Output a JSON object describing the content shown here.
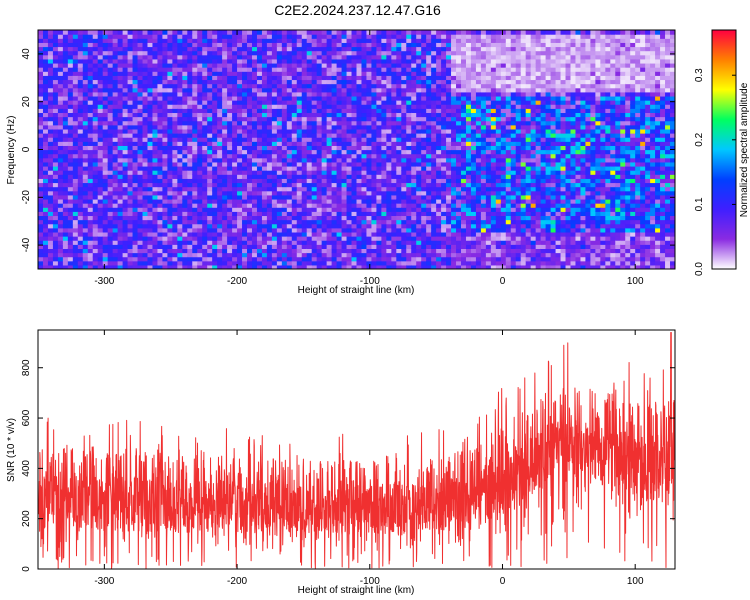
{
  "title": "C2E2.2024.237.12.47.G16",
  "chart_data": [
    {
      "type": "heatmap",
      "xlabel": "Height of straight line (km)",
      "ylabel": "Frequency (Hz)",
      "xlim": [
        -350,
        130
      ],
      "ylim": [
        -50,
        50
      ],
      "xticks": [
        -300,
        -200,
        -100,
        0,
        100
      ],
      "yticks": [
        -40,
        -20,
        0,
        20,
        40
      ],
      "colorbar": {
        "label": "Normalized spectral amplitude",
        "range": [
          0.0,
          0.37
        ],
        "ticks": [
          0.0,
          0.1,
          0.2,
          0.3
        ],
        "colormap": [
          "#ffffff",
          "#8a2be2",
          "#3f1fff",
          "#0040ff",
          "#00c8ff",
          "#00ff60",
          "#ffff00",
          "#ff8000",
          "#ff0040"
        ]
      },
      "description_regions": [
        {
          "x_range": [
            -350,
            -40
          ],
          "y_range": [
            -50,
            48
          ],
          "typical_level": 0.07
        },
        {
          "x_range": [
            -40,
            130
          ],
          "y_range": [
            25,
            48
          ],
          "typical_level": 0.02
        },
        {
          "x_range": [
            -40,
            130
          ],
          "y_range": [
            -35,
            22
          ],
          "typical_level": 0.11
        },
        {
          "x_range": [
            -40,
            130
          ],
          "y_range": [
            -50,
            -35
          ],
          "typical_level": 0.05
        }
      ]
    },
    {
      "type": "line",
      "xlabel": "Height of straight line (km)",
      "ylabel": "SNR (10 * v/v)",
      "xlim": [
        -350,
        130
      ],
      "ylim": [
        0,
        950
      ],
      "xticks": [
        -300,
        -200,
        -100,
        0,
        100
      ],
      "yticks": [
        0,
        200,
        400,
        600,
        800
      ],
      "color": "#f03030",
      "envelope": {
        "x": [
          -350,
          -300,
          -250,
          -200,
          -150,
          -100,
          -50,
          -20,
          0,
          20,
          40,
          60,
          80,
          100,
          130
        ],
        "upper": [
          480,
          480,
          460,
          450,
          440,
          430,
          450,
          480,
          580,
          650,
          720,
          730,
          710,
          670,
          680
        ],
        "lower": [
          40,
          40,
          40,
          40,
          40,
          40,
          45,
          60,
          110,
          170,
          210,
          230,
          200,
          160,
          120
        ],
        "peak_x": 127,
        "peak_y": 940
      }
    }
  ]
}
